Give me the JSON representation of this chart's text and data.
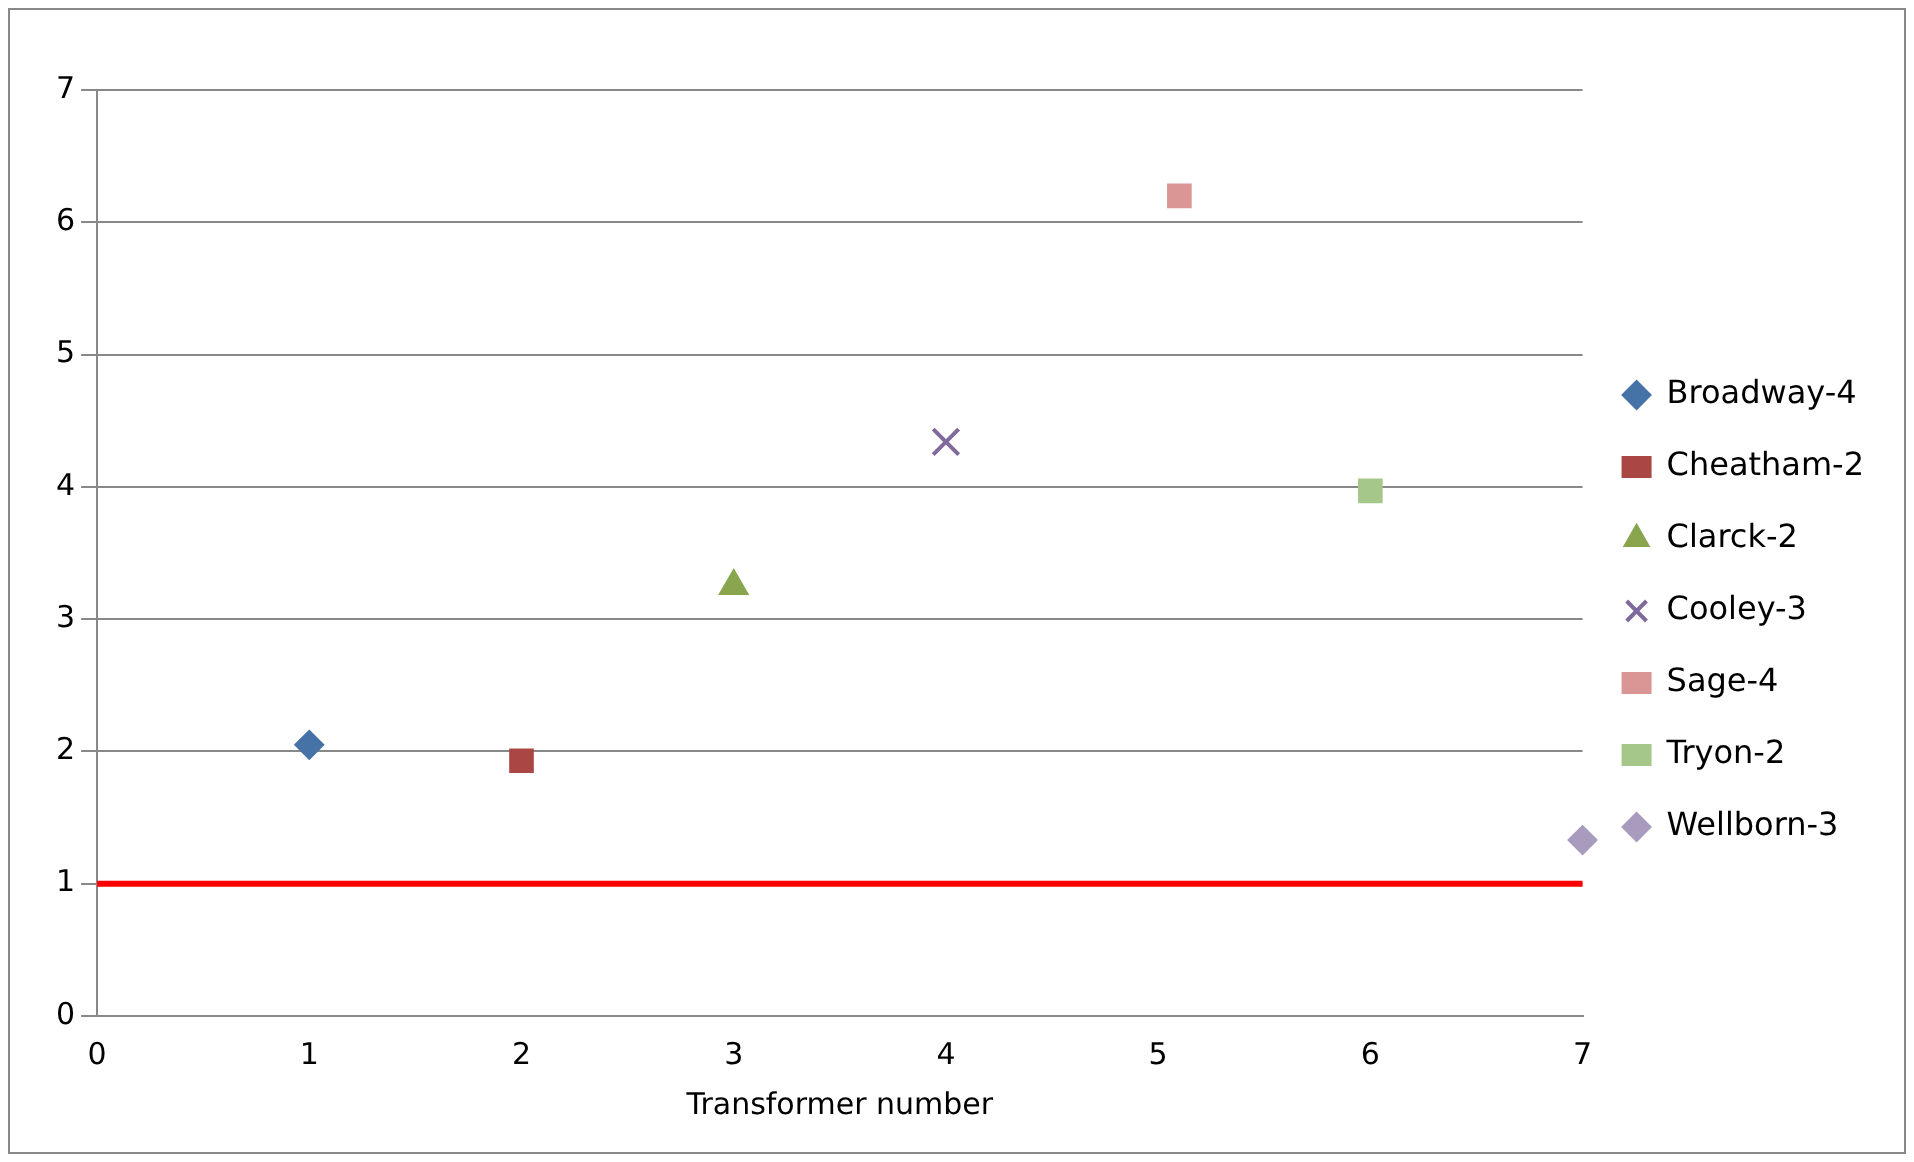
{
  "chart_data": {
    "type": "scatter",
    "xlabel": "Transformer number",
    "xlim": [
      0,
      7
    ],
    "xticks": [
      0,
      1,
      2,
      3,
      4,
      5,
      6,
      7
    ],
    "ylim": [
      0,
      7
    ],
    "yticks": [
      0,
      1,
      2,
      3,
      4,
      5,
      6,
      7
    ],
    "grid": "y",
    "legend": "right",
    "series": [
      {
        "name": "Broadway-4",
        "color": "#4572a7",
        "marker": "diamond",
        "x": [
          1
        ],
        "values": [
          2.05
        ]
      },
      {
        "name": "Cheatham-2",
        "color": "#aa4643",
        "marker": "square",
        "x": [
          2
        ],
        "values": [
          1.93
        ]
      },
      {
        "name": "Clarck-2",
        "color": "#89a54e",
        "marker": "triangle",
        "x": [
          3
        ],
        "values": [
          3.25
        ]
      },
      {
        "name": "Cooley-3",
        "color": "#80699b",
        "marker": "cross",
        "x": [
          4
        ],
        "values": [
          4.34
        ]
      },
      {
        "name": "Sage-4",
        "color": "#d99694",
        "marker": "square",
        "x": [
          5.1
        ],
        "values": [
          6.2
        ]
      },
      {
        "name": "Tryon-2",
        "color": "#a5c78a",
        "marker": "square",
        "x": [
          6
        ],
        "values": [
          3.97
        ]
      },
      {
        "name": "Wellborn-3",
        "color": "#a99bbd",
        "marker": "diamond",
        "x": [
          7
        ],
        "values": [
          1.33
        ]
      }
    ],
    "ref_lines": [
      {
        "axis": "y",
        "value": 1,
        "color": "#ff0000"
      }
    ]
  }
}
